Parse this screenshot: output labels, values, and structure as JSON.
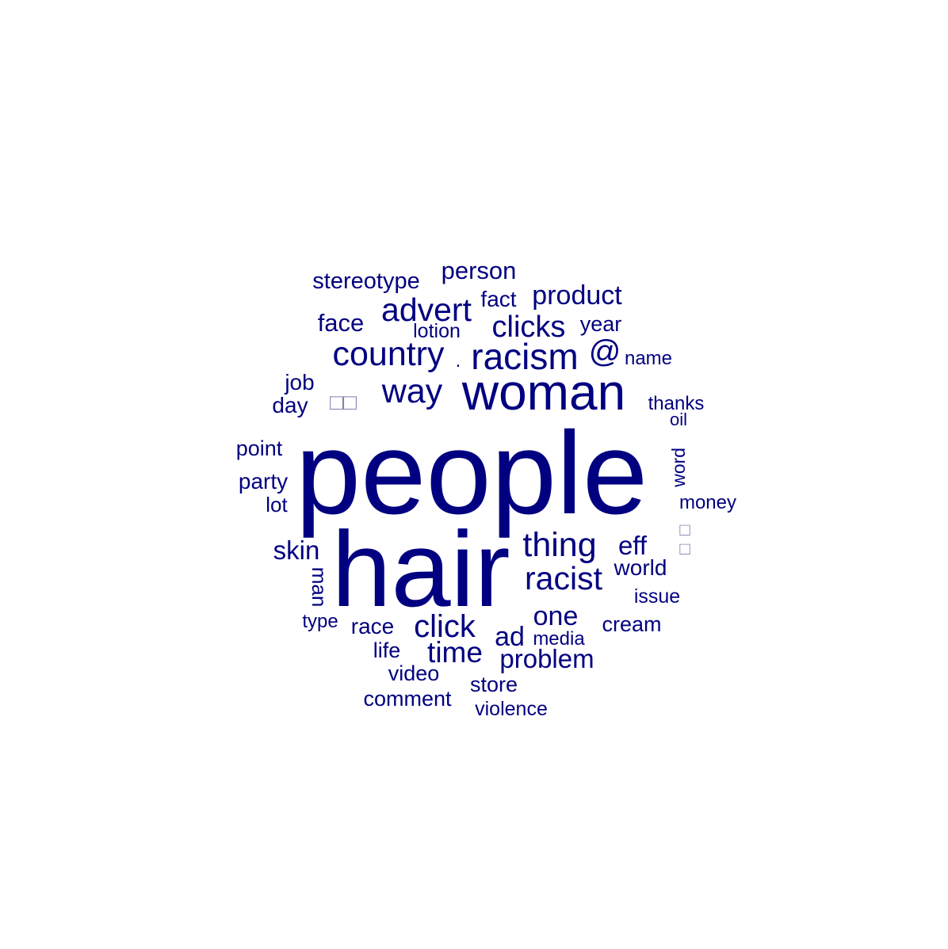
{
  "word_cloud": {
    "color": "#000080",
    "glyph_color": "#8080b0",
    "words": {
      "people": "people",
      "hair": "hair",
      "woman": "woman",
      "racism": "racism",
      "country": "country",
      "way": "way",
      "advert": "advert",
      "thing": "thing",
      "racist": "racist",
      "clicks": "clicks",
      "click": "click",
      "time": "time",
      "product": "product",
      "at": "@",
      "eff": "eff",
      "ad": "ad",
      "one": "one",
      "skin": "skin",
      "problem": "problem",
      "person": "person",
      "face": "face",
      "stereotype": "stereotype",
      "fact": "fact",
      "world": "world",
      "race": "race",
      "year": "year",
      "lotion": "lotion",
      "name": "name",
      "job": "job",
      "day": "day",
      "boxes1": "□□",
      "thanks": "thanks",
      "oil": "oil",
      "point": "point",
      "word": "word",
      "party": "party",
      "money": "money",
      "lot": "lot",
      "boxes2a": "□",
      "boxes2b": "□",
      "man": "man",
      "issue": "issue",
      "type": "type",
      "cream": "cream",
      "media": "media",
      "life": "life",
      "video": "video",
      "store": "store",
      "comment": "comment",
      "violence": "violence",
      "dot": "."
    }
  }
}
